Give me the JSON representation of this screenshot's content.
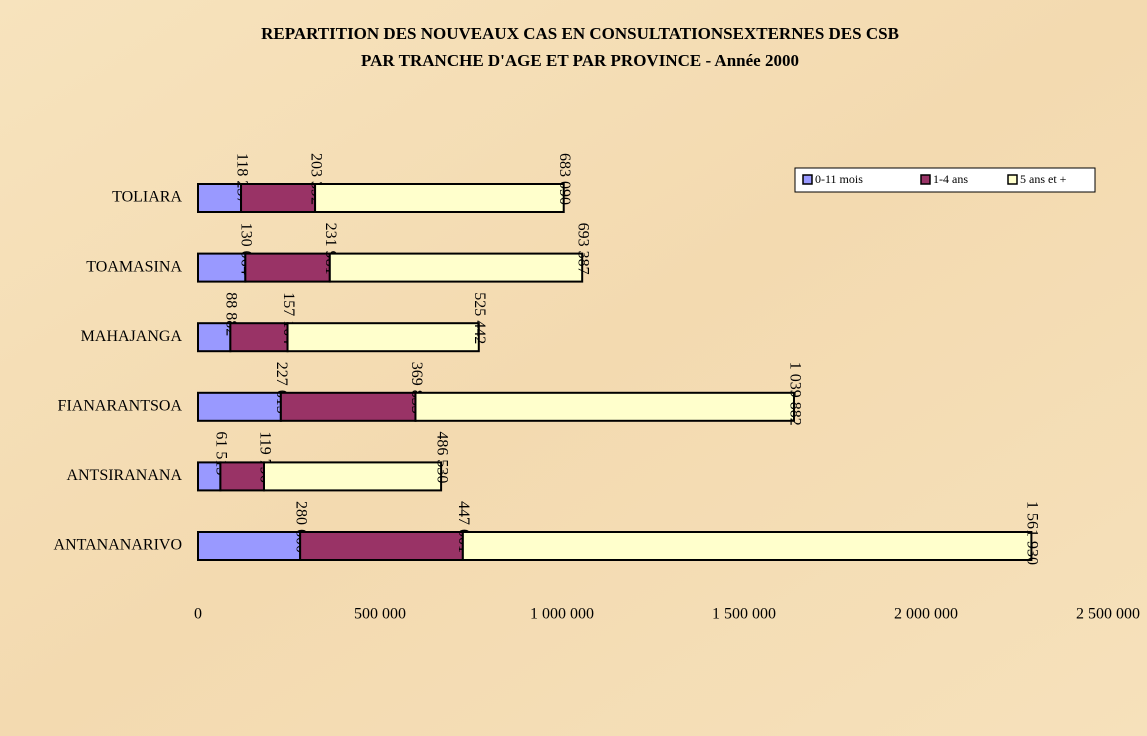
{
  "chart_data": {
    "type": "stacked_hbar",
    "title": "REPARTITION DES NOUVEAUX CAS EN CONSULTATIONSEXTERNES DES CSB",
    "subtitle": "PAR TRANCHE D'AGE ET PAR PROVINCE  - Année 2000",
    "categories": [
      "ANTANANARIVO",
      "ANTSIRANANA",
      "FIANARANTSOA",
      "MAHAJANGA",
      "TOAMASINA",
      "TOLIARA"
    ],
    "series": [
      {
        "name": "0-11 mois",
        "color": "#9999ff",
        "values": [
          280600,
          61513,
          227615,
          88882,
          130064,
          118257
        ],
        "value_labels": [
          "280 600",
          "61 513",
          "227 615",
          "88 882",
          "130 064",
          "118 257"
        ]
      },
      {
        "name": "1-4 ans",
        "color": "#993366",
        "values": [
          447001,
          119796,
          369833,
          157104,
          231981,
          203392
        ],
        "value_labels": [
          "447 001",
          "119 796",
          "369 833",
          "157 104",
          "231 981",
          "203 392"
        ]
      },
      {
        "name": "5 ans et +",
        "color": "#ffffcc",
        "values": [
          1561930,
          486530,
          1039882,
          525442,
          693387,
          683090
        ],
        "value_labels": [
          "1 561 930",
          "486 530",
          "1 039 882",
          "525 442",
          "693 387",
          "683 090"
        ]
      }
    ],
    "xlim": [
      0,
      2500000
    ],
    "xticks": [
      0,
      {
        "value": 500000,
        "label": "500 000"
      },
      {
        "value": 1000000,
        "label": "1 000 000"
      },
      {
        "value": 1500000,
        "label": "1 500 000"
      },
      {
        "value": 2000000,
        "label": "2 000 000"
      },
      {
        "value": 2500000,
        "label": "2 500 000"
      }
    ],
    "legend": "top-right"
  }
}
